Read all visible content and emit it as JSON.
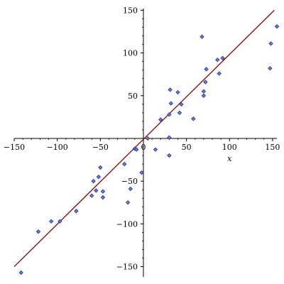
{
  "chart_data": {
    "type": "scatter",
    "title": "",
    "xlabel": "x",
    "ylabel": "",
    "xlim": [
      -150,
      155
    ],
    "ylim": [
      -162,
      152
    ],
    "xticks": [
      -150,
      -100,
      -50,
      0,
      50,
      100,
      150
    ],
    "yticks": [
      -150,
      -100,
      -50,
      50,
      100,
      150
    ],
    "xtick_labels": [
      "−150",
      "−100",
      "−50",
      "0",
      "50",
      "100",
      "150"
    ],
    "ytick_labels": [
      "−150",
      "−100",
      "−50",
      "50",
      "100",
      "150"
    ],
    "grid": false,
    "legend": "none",
    "colors": {
      "points_fill": "#6f7fcf",
      "points_stroke": "#1f2f8f",
      "line": "#8b0000",
      "axis": "#000000"
    },
    "series": [
      {
        "type": "scatter",
        "points": [
          [
            -142,
            -157
          ],
          [
            -122,
            -109
          ],
          [
            -107,
            -97
          ],
          [
            -97,
            -97
          ],
          [
            -78,
            -85
          ],
          [
            -60,
            -67
          ],
          [
            -58,
            -50
          ],
          [
            -55,
            -61
          ],
          [
            -52,
            -45
          ],
          [
            -50,
            -34
          ],
          [
            -47,
            -69
          ],
          [
            -47,
            -62
          ],
          [
            -22,
            -30
          ],
          [
            -18,
            -75
          ],
          [
            -15,
            -59
          ],
          [
            -10,
            -12
          ],
          [
            -8,
            -13
          ],
          [
            -2,
            -40
          ],
          [
            5,
            0
          ],
          [
            14,
            -13
          ],
          [
            20,
            22
          ],
          [
            30,
            1
          ],
          [
            30,
            -20
          ],
          [
            30,
            28
          ],
          [
            31,
            57
          ],
          [
            32,
            41
          ],
          [
            40,
            54
          ],
          [
            42,
            30
          ],
          [
            44,
            40
          ],
          [
            58,
            23
          ],
          [
            68,
            119
          ],
          [
            70,
            50
          ],
          [
            70,
            55
          ],
          [
            72,
            66
          ],
          [
            73,
            81
          ],
          [
            86,
            92
          ],
          [
            88,
            76
          ],
          [
            92,
            94
          ],
          [
            147,
            82
          ],
          [
            148,
            111
          ],
          [
            155,
            131
          ]
        ]
      },
      {
        "type": "line",
        "points": [
          [
            -150,
            -150
          ],
          [
            152,
            150
          ]
        ]
      }
    ]
  }
}
